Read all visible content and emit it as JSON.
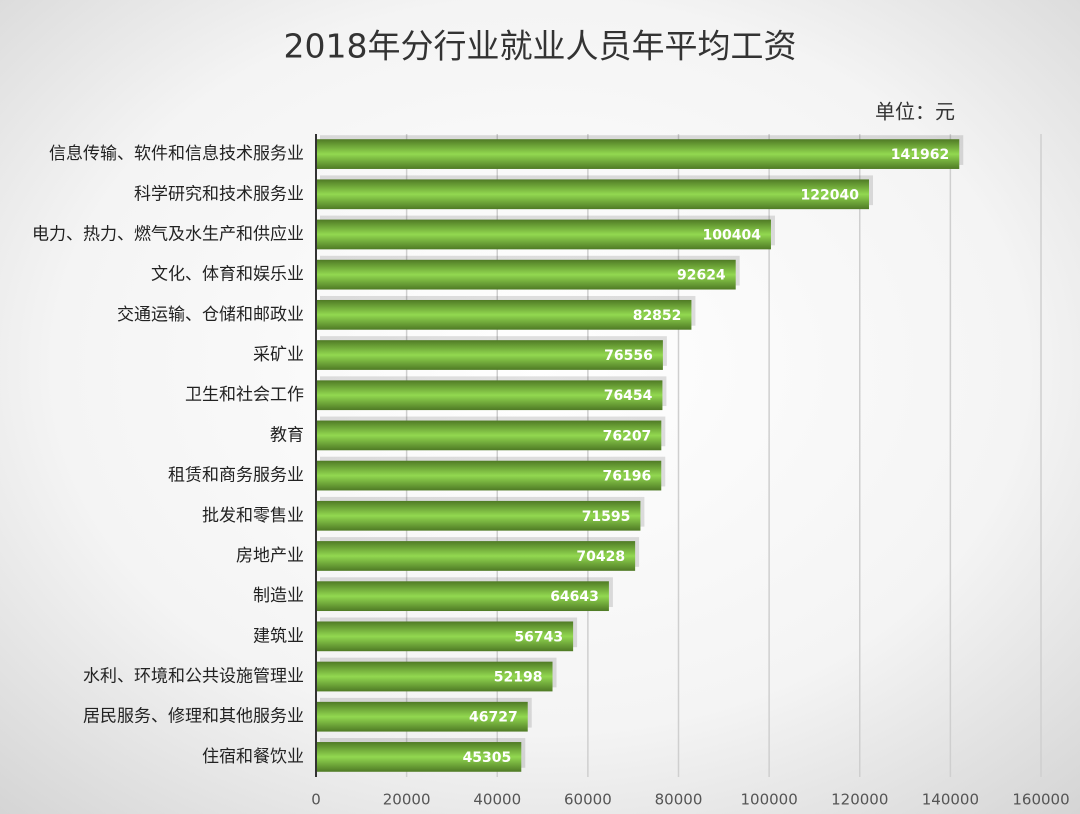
{
  "chart_data": {
    "type": "bar",
    "orientation": "horizontal",
    "title": "2018年分行业就业人员年平均工资",
    "unit_label": "单位：元",
    "categories": [
      "信息传输、软件和信息技术服务业",
      "科学研究和技术服务业",
      "电力、热力、燃气及水生产和供应业",
      "文化、体育和娱乐业",
      "交通运输、仓储和邮政业",
      "采矿业",
      "卫生和社会工作",
      "教育",
      "租赁和商务服务业",
      "批发和零售业",
      "房地产业",
      "制造业",
      "建筑业",
      "水利、环境和公共设施管理业",
      "居民服务、修理和其他服务业",
      "住宿和餐饮业"
    ],
    "values": [
      141962,
      122040,
      100404,
      92624,
      82852,
      76556,
      76454,
      76207,
      76196,
      71595,
      70428,
      64643,
      56743,
      52198,
      46727,
      45305
    ],
    "color": "#92d850",
    "xlim": [
      0,
      160000
    ],
    "xticks": [
      0,
      20000,
      40000,
      60000,
      80000,
      100000,
      120000,
      140000,
      160000
    ],
    "grid": true
  }
}
